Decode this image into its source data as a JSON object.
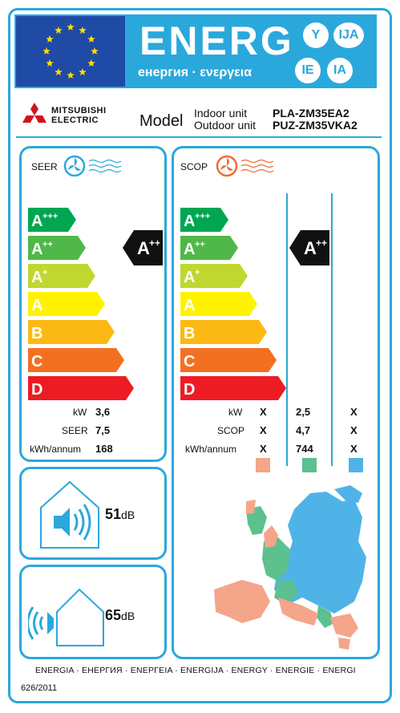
{
  "header": {
    "energ_word": "ENERG",
    "subtitle": "енергия · ενεργεια",
    "lang_codes": [
      "Y",
      "IJA",
      "IE",
      "IA"
    ]
  },
  "brand": {
    "name": "MITSUBISHI ELECTRIC",
    "line1": "MITSUBISHI",
    "line2": "ELECTRIC"
  },
  "model": {
    "label": "Model",
    "indoor_label": "Indoor unit",
    "outdoor_label": "Outdoor unit",
    "indoor_value": "PLA-ZM35EA2",
    "outdoor_value": "PUZ-ZM35VKA2"
  },
  "scale": [
    {
      "letter": "A",
      "sup": "+++",
      "color": "#00a651"
    },
    {
      "letter": "A",
      "sup": "++",
      "color": "#50b848"
    },
    {
      "letter": "A",
      "sup": "+",
      "color": "#bfd730"
    },
    {
      "letter": "A",
      "sup": "",
      "color": "#fff200"
    },
    {
      "letter": "B",
      "sup": "",
      "color": "#fdb913"
    },
    {
      "letter": "C",
      "sup": "",
      "color": "#f37021"
    },
    {
      "letter": "D",
      "sup": "",
      "color": "#ed1c24"
    }
  ],
  "cooling": {
    "title": "SEER",
    "class_letter": "A",
    "class_sup": "++",
    "rows": [
      {
        "label": "kW",
        "value": "3,6"
      },
      {
        "label": "SEER",
        "value": "7,5"
      },
      {
        "label": "kWh/annum",
        "value": "168"
      }
    ]
  },
  "heating": {
    "title": "SCOP",
    "class_letter": "A",
    "class_sup": "++",
    "rows": [
      {
        "label": "kW",
        "warm": "X",
        "average": "2,5",
        "cold": "X"
      },
      {
        "label": "SCOP",
        "warm": "X",
        "average": "4,7",
        "cold": "X"
      },
      {
        "label": "kWh/annum",
        "warm": "X",
        "average": "744",
        "cold": "X"
      }
    ],
    "zone_colors": {
      "warm": "#f4a58a",
      "average": "#5cc08f",
      "cold": "#4fb3e8"
    }
  },
  "noise": {
    "indoor": {
      "value": "51",
      "unit": "dB"
    },
    "outdoor": {
      "value": "65",
      "unit": "dB"
    }
  },
  "footer": {
    "languages": "ENERGIA · ЕНЕРГИЯ · ΕΝΕΡΓΕΙΑ · ENERGIJA · ENERGY · ENERGIE · ENERGI",
    "regulation": "626/2011"
  },
  "colors": {
    "frame": "#2aa8dc",
    "flag": "#1f4aa6",
    "star": "#ffdd00",
    "fan_blue": "#2aa8dc",
    "fan_orange": "#f06a35"
  },
  "icons": [
    "eu-flag",
    "fan-icon",
    "speaker-icon",
    "house-icon",
    "europe-map"
  ]
}
